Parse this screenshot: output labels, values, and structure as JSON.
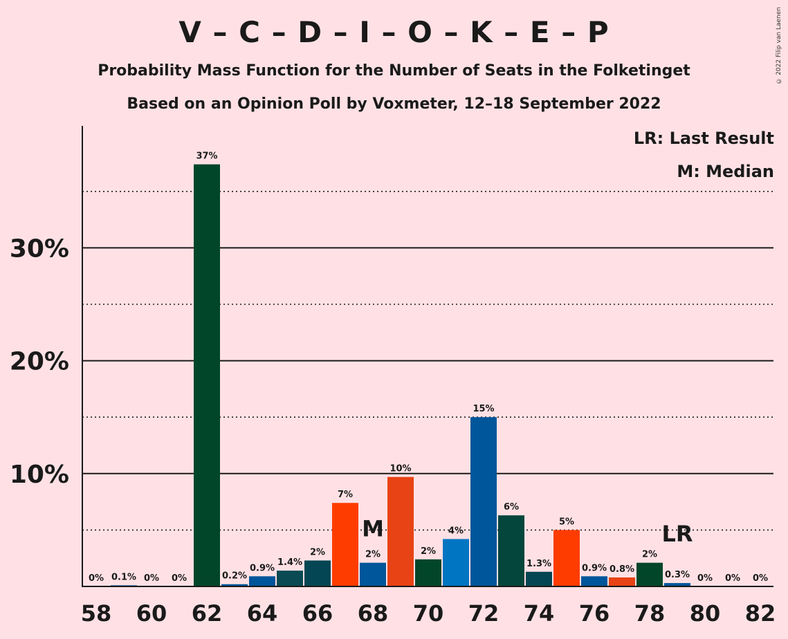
{
  "title": "V – C – D – I – O – K – E – P",
  "subtitle_1": "Probability Mass Function for the Number of Seats in the Folketinget",
  "subtitle_2": "Based on an Opinion Poll by Voxmeter, 12–18 September 2022",
  "copyright": "© 2022 Filip van Laenen",
  "legend": {
    "last_result": "LR: Last Result",
    "median": "M: Median"
  },
  "markers": {
    "median_label": "M",
    "median_seat": 68,
    "last_result_label": "LR",
    "last_result_seat": 79
  },
  "chart_data": {
    "type": "bar",
    "title": "V – C – D – I – O – K – E – P",
    "xlabel": "",
    "ylabel": "",
    "ylim": [
      0,
      40
    ],
    "yticks": [
      10,
      20,
      30
    ],
    "ytick_labels": [
      "10%",
      "20%",
      "30%"
    ],
    "dotted_gridlines": [
      5,
      15,
      25,
      35
    ],
    "xtick_labels": [
      "58",
      "60",
      "62",
      "64",
      "66",
      "68",
      "70",
      "72",
      "74",
      "76",
      "78",
      "80",
      "82"
    ],
    "categories": [
      58,
      59,
      60,
      61,
      62,
      63,
      64,
      65,
      66,
      67,
      68,
      69,
      70,
      71,
      72,
      73,
      74,
      75,
      76,
      77,
      78,
      79,
      80,
      81,
      82
    ],
    "values": [
      0,
      0.1,
      0,
      0,
      37.4,
      0.2,
      0.9,
      1.4,
      2.3,
      7.4,
      2.1,
      9.7,
      2.4,
      4.2,
      15.0,
      6.3,
      1.3,
      5.0,
      0.9,
      0.8,
      2.1,
      0.3,
      0,
      0,
      0
    ],
    "labels": [
      "0%",
      "0.1%",
      "0%",
      "0%",
      "37%",
      "0.2%",
      "0.9%",
      "1.4%",
      "2%",
      "7%",
      "2%",
      "10%",
      "2%",
      "4%",
      "15%",
      "6%",
      "1.3%",
      "5%",
      "0.9%",
      "0.8%",
      "2%",
      "0.3%",
      "0%",
      "0%",
      "0%"
    ],
    "colors": [
      "#02462a",
      "#00569a",
      "#0a4a52",
      "#0a4a52",
      "#02462a",
      "#00569a",
      "#00569a",
      "#0a4a52",
      "#044653",
      "#ff3c00",
      "#00569a",
      "#e84315",
      "#02462a",
      "#0075c2",
      "#00569a",
      "#04463c",
      "#044653",
      "#ff3c00",
      "#00569a",
      "#e84315",
      "#02462a",
      "#00569a",
      "#02462a",
      "#02462a",
      "#02462a"
    ]
  }
}
